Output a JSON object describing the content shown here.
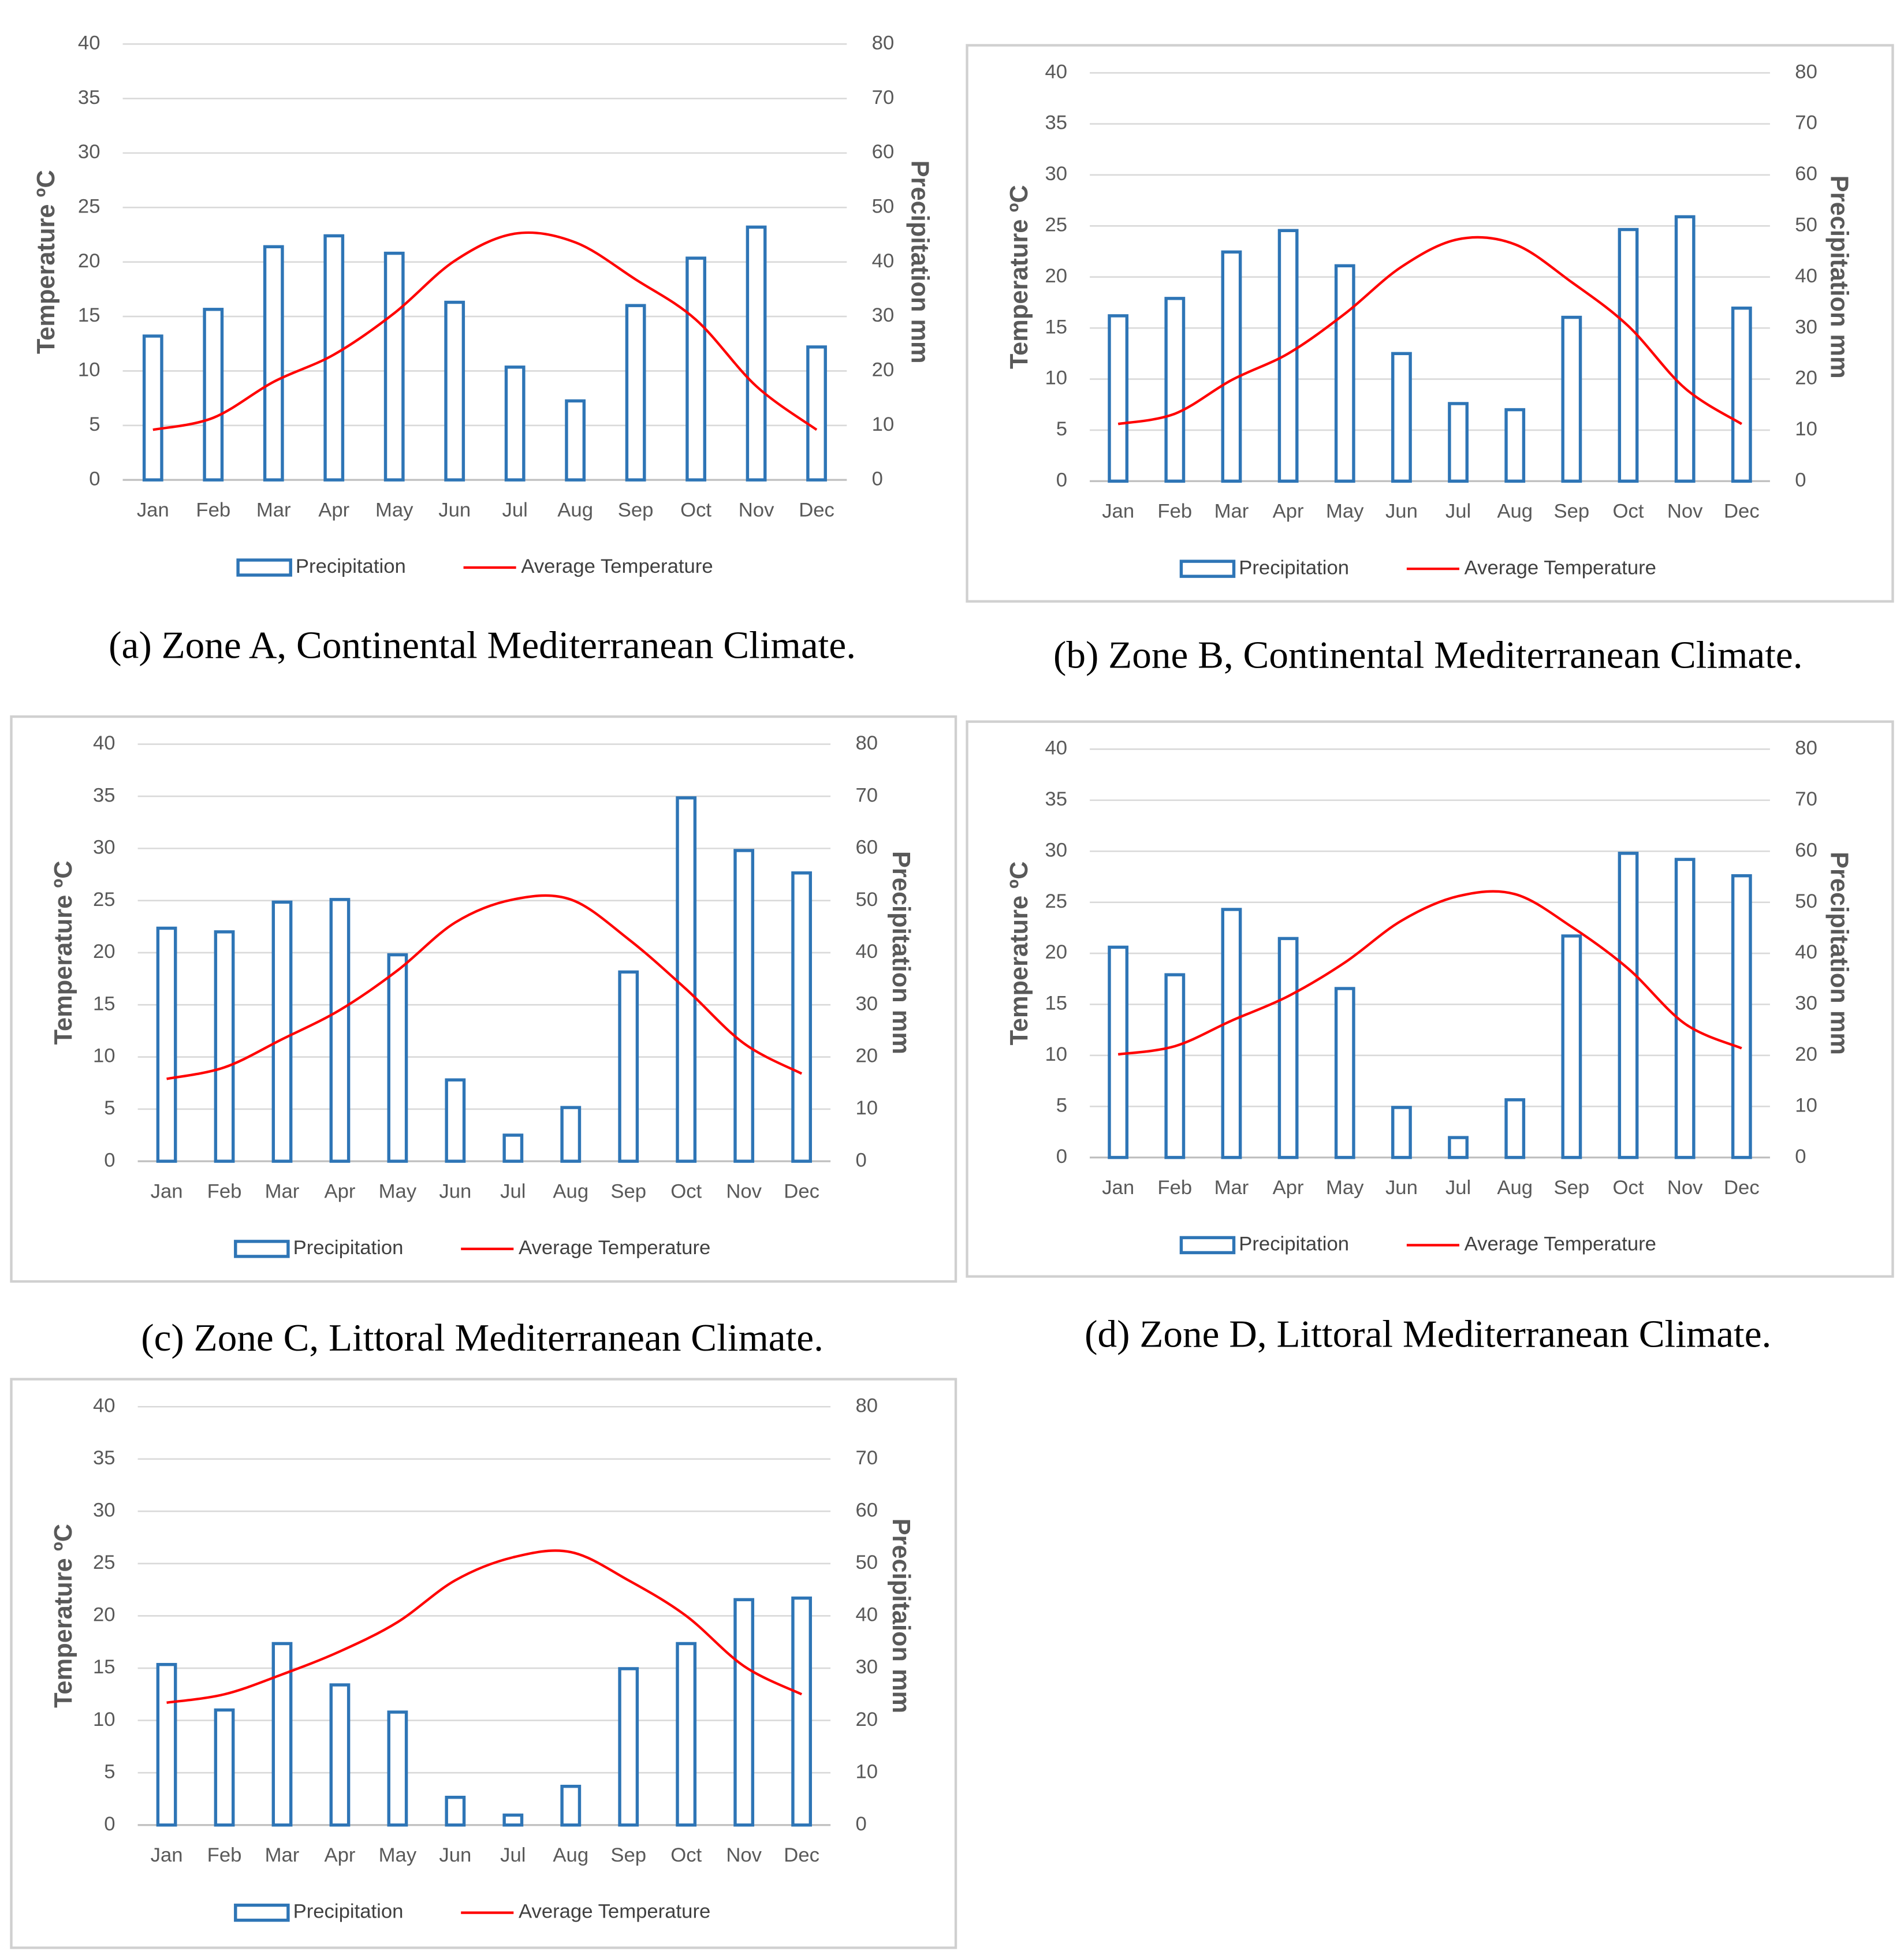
{
  "chart_data": [
    {
      "type": "combo",
      "caption": "(a) Zone A, Continental Mediterranean Climate.",
      "ylabel": "Temperature ºC",
      "y2label": "Precipitation mm",
      "categories": [
        "Jan",
        "Feb",
        "Mar",
        "Apr",
        "May",
        "Jun",
        "Jul",
        "Aug",
        "Sep",
        "Oct",
        "Nov",
        "Dec"
      ],
      "series": [
        {
          "name": "Precipitation",
          "type": "bar",
          "axis": "y2",
          "color": "#2e75b6",
          "values": [
            26.4,
            31.3,
            42.8,
            44.8,
            41.6,
            32.6,
            20.7,
            14.5,
            32,
            40.7,
            46.4,
            24.4
          ]
        },
        {
          "name": "Average Temperature",
          "type": "line",
          "color": "#ff0000",
          "values": [
            4.6,
            5.7,
            9,
            11.5,
            15.3,
            20.1,
            22.6,
            21.8,
            18.4,
            14.7,
            8.6,
            4.6
          ]
        }
      ],
      "ylim": [
        0,
        40
      ],
      "yticks": [
        0,
        5,
        10,
        15,
        20,
        25,
        30,
        35,
        40
      ],
      "y2lim": [
        0,
        80
      ],
      "y2ticks": [
        0,
        10,
        20,
        30,
        40,
        50,
        60,
        70,
        80
      ],
      "grid": true
    },
    {
      "type": "combo",
      "caption": "(b) Zone B, Continental Mediterranean Climate.",
      "ylabel": "Temperature ºC",
      "y2label": "Precipitation mm",
      "categories": [
        "Jan",
        "Feb",
        "Mar",
        "Apr",
        "May",
        "Jun",
        "Jul",
        "Aug",
        "Sep",
        "Oct",
        "Nov",
        "Dec"
      ],
      "series": [
        {
          "name": "Precipitation",
          "type": "bar",
          "axis": "y2",
          "color": "#2e75b6",
          "values": [
            32.4,
            35.8,
            44.9,
            49.1,
            42.2,
            25,
            15.2,
            14,
            32.1,
            49.3,
            51.8,
            33.9
          ]
        },
        {
          "name": "Average Temperature",
          "type": "line",
          "color": "#ff0000",
          "values": [
            5.6,
            6.6,
            9.9,
            12.5,
            16.4,
            21,
            23.7,
            23.2,
            19.5,
            15.2,
            9.1,
            5.6
          ]
        }
      ],
      "ylim": [
        0,
        40
      ],
      "yticks": [
        0,
        5,
        10,
        15,
        20,
        25,
        30,
        35,
        40
      ],
      "y2lim": [
        0,
        80
      ],
      "y2ticks": [
        0,
        10,
        20,
        30,
        40,
        50,
        60,
        70,
        80
      ],
      "grid": true
    },
    {
      "type": "combo",
      "caption": "(c) Zone C, Littoral Mediterranean Climate.",
      "ylabel": "Temperature ºC",
      "y2label": "Precipitation mm",
      "categories": [
        "Jan",
        "Feb",
        "Mar",
        "Apr",
        "May",
        "Jun",
        "Jul",
        "Aug",
        "Sep",
        "Oct",
        "Nov",
        "Dec"
      ],
      "series": [
        {
          "name": "Precipitation",
          "type": "bar",
          "axis": "y2",
          "color": "#2e75b6",
          "values": [
            44.7,
            44,
            49.7,
            50.2,
            39.6,
            15.6,
            5,
            10.3,
            36.3,
            69.7,
            59.6,
            55.3
          ]
        },
        {
          "name": "Average Temperature",
          "type": "line",
          "color": "#ff0000",
          "values": [
            7.9,
            9,
            11.7,
            14.5,
            18.3,
            22.9,
            25.1,
            25.1,
            21.3,
            16.5,
            11.3,
            8.4
          ]
        }
      ],
      "ylim": [
        0,
        40
      ],
      "yticks": [
        0,
        5,
        10,
        15,
        20,
        25,
        30,
        35,
        40
      ],
      "y2lim": [
        0,
        80
      ],
      "y2ticks": [
        0,
        10,
        20,
        30,
        40,
        50,
        60,
        70,
        80
      ],
      "grid": true
    },
    {
      "type": "combo",
      "caption": "(d) Zone D, Littoral Mediterranean Climate.",
      "ylabel": "Temperature ºC",
      "y2label": "Precipitation mm",
      "categories": [
        "Jan",
        "Feb",
        "Mar",
        "Apr",
        "May",
        "Jun",
        "Jul",
        "Aug",
        "Sep",
        "Oct",
        "Nov",
        "Dec"
      ],
      "series": [
        {
          "name": "Precipitation",
          "type": "bar",
          "axis": "y2",
          "color": "#2e75b6",
          "values": [
            41.2,
            35.8,
            48.6,
            42.9,
            33.1,
            9.8,
            3.9,
            11.3,
            43.4,
            59.6,
            58.4,
            55.2
          ]
        },
        {
          "name": "Average Temperature",
          "type": "line",
          "color": "#ff0000",
          "values": [
            10.1,
            10.9,
            13.4,
            15.8,
            19.1,
            23.2,
            25.6,
            25.8,
            22.6,
            18.5,
            13.1,
            10.7
          ]
        }
      ],
      "ylim": [
        0,
        40
      ],
      "yticks": [
        0,
        5,
        10,
        15,
        20,
        25,
        30,
        35,
        40
      ],
      "y2lim": [
        0,
        80
      ],
      "y2ticks": [
        0,
        10,
        20,
        30,
        40,
        50,
        60,
        70,
        80
      ],
      "grid": true
    },
    {
      "type": "combo",
      "ylabel": "Temperature ºC",
      "y2label": "Precipitaion mm",
      "categories": [
        "Jan",
        "Feb",
        "Mar",
        "Apr",
        "May",
        "Jun",
        "Jul",
        "Aug",
        "Sep",
        "Oct",
        "Nov",
        "Dec"
      ],
      "series": [
        {
          "name": "Precipitation",
          "type": "bar",
          "axis": "y2",
          "color": "#2e75b6",
          "values": [
            30.7,
            22,
            34.7,
            26.8,
            21.6,
            5.3,
            1.9,
            7.4,
            29.9,
            34.7,
            43.1,
            43.4
          ]
        },
        {
          "name": "Average Temperature",
          "type": "line",
          "color": "#ff0000",
          "values": [
            11.7,
            12.5,
            14.4,
            16.6,
            19.4,
            23.4,
            25.6,
            26.1,
            23.4,
            20,
            15.2,
            12.5
          ]
        }
      ],
      "ylim": [
        0,
        40
      ],
      "yticks": [
        0,
        5,
        10,
        15,
        20,
        25,
        30,
        35,
        40
      ],
      "y2lim": [
        0,
        80
      ],
      "y2ticks": [
        0,
        10,
        20,
        30,
        40,
        50,
        60,
        70,
        80
      ],
      "grid": true
    }
  ]
}
